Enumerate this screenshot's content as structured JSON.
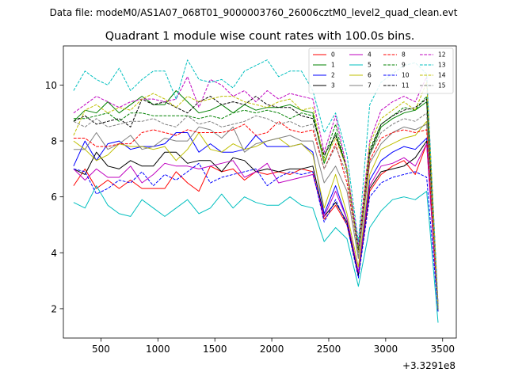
{
  "chart_data": {
    "type": "line",
    "suptitle": "Data file: modeM0/AS1A07_068T01_9000003760_26006cztM0_level2_quad_clean.evt",
    "title": "Quadrant 1 module wise count rates with 100.0s bins.",
    "xlabel": "",
    "ylabel": "",
    "x_offset_label": "+3.3291e8",
    "xlim": [
      170,
      3620
    ],
    "ylim": [
      0.95,
      11.4
    ],
    "xticks": [
      500,
      1000,
      1500,
      2000,
      2500,
      3000,
      3500
    ],
    "yticks": [
      2,
      4,
      6,
      8,
      10
    ],
    "legend_position": "top-right",
    "legend_columns": 4,
    "x": [
      260,
      360,
      460,
      560,
      660,
      760,
      860,
      960,
      1060,
      1160,
      1260,
      1360,
      1460,
      1560,
      1660,
      1760,
      1860,
      1960,
      2060,
      2160,
      2260,
      2360,
      2460,
      2560,
      2660,
      2760,
      2860,
      2960,
      3060,
      3160,
      3260,
      3360,
      3460
    ],
    "series": [
      {
        "name": "0",
        "color": "#ff0000",
        "dash": "solid",
        "values": [
          6.4,
          7.0,
          6.3,
          6.6,
          6.3,
          6.6,
          6.3,
          6.3,
          6.3,
          6.9,
          6.5,
          6.2,
          7.1,
          6.9,
          7.0,
          6.6,
          6.9,
          6.8,
          6.9,
          6.8,
          7.0,
          6.9,
          5.2,
          5.7,
          5.0,
          3.2,
          6.2,
          6.8,
          7.1,
          7.3,
          6.8,
          7.9,
          2.0
        ]
      },
      {
        "name": "1",
        "color": "#008000",
        "dash": "solid",
        "values": [
          8.7,
          9.1,
          9.0,
          9.4,
          9.0,
          9.3,
          9.6,
          9.3,
          9.3,
          9.8,
          9.4,
          9.0,
          9.1,
          9.3,
          9.0,
          9.3,
          9.1,
          9.2,
          9.2,
          9.3,
          9.1,
          9.0,
          7.2,
          8.3,
          7.0,
          4.0,
          7.5,
          8.5,
          8.8,
          9.0,
          9.1,
          9.4,
          2.0
        ]
      },
      {
        "name": "2",
        "color": "#0000ff",
        "dash": "solid",
        "values": [
          7.1,
          8.0,
          7.3,
          7.9,
          8.0,
          7.7,
          7.8,
          7.8,
          7.9,
          8.3,
          8.3,
          7.6,
          7.9,
          7.6,
          7.6,
          7.7,
          8.2,
          7.8,
          7.8,
          7.8,
          7.9,
          7.6,
          5.4,
          6.4,
          5.2,
          3.3,
          6.6,
          7.3,
          7.6,
          7.8,
          7.7,
          8.1,
          1.9
        ]
      },
      {
        "name": "3",
        "color": "#000000",
        "dash": "solid",
        "values": [
          7.0,
          6.8,
          7.6,
          7.1,
          7.0,
          7.3,
          7.1,
          7.1,
          7.6,
          7.6,
          7.2,
          7.3,
          7.3,
          6.9,
          7.4,
          7.3,
          6.9,
          7.0,
          6.9,
          7.0,
          7.0,
          7.1,
          5.3,
          5.8,
          5.1,
          3.2,
          6.3,
          6.9,
          7.0,
          7.1,
          7.4,
          8.0,
          1.9
        ]
      },
      {
        "name": "4",
        "color": "#bf00bf",
        "dash": "solid",
        "values": [
          7.0,
          6.6,
          7.0,
          6.7,
          6.7,
          7.1,
          6.5,
          6.8,
          7.2,
          7.1,
          7.1,
          7.0,
          7.1,
          7.2,
          7.3,
          6.7,
          6.9,
          7.2,
          6.5,
          6.6,
          6.7,
          6.8,
          5.3,
          6.2,
          5.2,
          3.3,
          6.4,
          7.1,
          7.2,
          7.4,
          7.1,
          7.9,
          1.9
        ]
      },
      {
        "name": "5",
        "color": "#00bfbf",
        "dash": "solid",
        "values": [
          5.8,
          5.6,
          6.4,
          5.7,
          5.4,
          5.3,
          5.9,
          5.6,
          5.3,
          5.6,
          5.9,
          5.4,
          5.6,
          6.1,
          5.6,
          6.0,
          5.8,
          5.7,
          5.7,
          6.0,
          5.7,
          5.6,
          4.4,
          4.9,
          4.5,
          2.8,
          4.9,
          5.5,
          5.9,
          6.0,
          5.9,
          6.2,
          1.5
        ]
      },
      {
        "name": "6",
        "color": "#bfbf00",
        "dash": "solid",
        "values": [
          8.0,
          7.7,
          7.3,
          7.5,
          7.9,
          7.8,
          7.8,
          7.7,
          7.8,
          7.3,
          7.7,
          8.3,
          7.7,
          7.6,
          7.9,
          7.7,
          7.8,
          8.0,
          8.1,
          7.8,
          7.9,
          7.5,
          5.6,
          6.8,
          5.4,
          3.5,
          6.8,
          7.7,
          7.9,
          8.1,
          8.2,
          8.7,
          1.9
        ]
      },
      {
        "name": "7",
        "color": "#808080",
        "dash": "solid",
        "values": [
          7.7,
          7.7,
          8.3,
          7.7,
          7.9,
          8.2,
          7.7,
          7.8,
          8.1,
          8.0,
          8.0,
          8.5,
          8.4,
          8.1,
          8.5,
          7.6,
          7.9,
          8.0,
          8.1,
          8.2,
          8.0,
          8.0,
          6.5,
          7.1,
          6.2,
          3.8,
          7.2,
          7.9,
          8.3,
          8.5,
          8.4,
          8.6,
          2.0
        ]
      },
      {
        "name": "8",
        "color": "#ff0000",
        "dash": "dashed",
        "values": [
          8.1,
          8.1,
          7.8,
          7.8,
          7.9,
          7.9,
          8.3,
          8.4,
          8.3,
          8.2,
          8.4,
          8.3,
          8.3,
          8.3,
          8.4,
          8.6,
          8.2,
          8.3,
          8.7,
          8.4,
          8.3,
          8.4,
          7.0,
          7.9,
          6.5,
          4.0,
          7.3,
          8.1,
          8.3,
          8.4,
          8.3,
          8.4,
          2.0
        ]
      },
      {
        "name": "9",
        "color": "#008000",
        "dash": "dashed",
        "values": [
          8.8,
          8.8,
          8.9,
          9.0,
          8.7,
          9.0,
          9.0,
          8.9,
          8.9,
          8.9,
          8.9,
          8.8,
          8.9,
          8.8,
          9.0,
          9.1,
          9.0,
          9.1,
          9.0,
          8.8,
          9.0,
          8.9,
          7.4,
          8.6,
          6.9,
          4.1,
          7.7,
          8.6,
          8.9,
          9.2,
          9.1,
          9.6,
          2.0
        ]
      },
      {
        "name": "10",
        "color": "#0000ff",
        "dash": "dashed",
        "values": [
          7.0,
          6.9,
          6.1,
          6.3,
          6.6,
          6.5,
          6.9,
          6.4,
          6.8,
          6.6,
          6.9,
          7.2,
          6.5,
          6.7,
          6.8,
          6.9,
          7.0,
          6.4,
          6.7,
          6.9,
          6.8,
          6.9,
          5.1,
          5.9,
          5.0,
          3.1,
          6.0,
          6.5,
          6.7,
          6.8,
          6.9,
          6.7,
          1.9
        ]
      },
      {
        "name": "11",
        "color": "#000000",
        "dash": "dashed",
        "values": [
          8.7,
          8.9,
          8.6,
          8.7,
          8.8,
          8.5,
          9.5,
          9.3,
          9.4,
          9.2,
          9.0,
          9.4,
          9.6,
          9.3,
          9.4,
          9.3,
          9.6,
          9.3,
          9.2,
          9.2,
          8.9,
          8.8,
          7.5,
          8.2,
          7.0,
          4.1,
          7.6,
          8.6,
          8.9,
          9.1,
          9.2,
          9.5,
          2.1
        ]
      },
      {
        "name": "12",
        "color": "#bf00bf",
        "dash": "dashed",
        "values": [
          9.0,
          9.3,
          9.6,
          9.4,
          9.2,
          9.4,
          9.5,
          9.5,
          9.4,
          9.5,
          10.3,
          9.2,
          10.2,
          10.0,
          9.6,
          9.8,
          9.4,
          9.8,
          9.5,
          9.7,
          9.6,
          9.5,
          7.6,
          8.9,
          7.0,
          4.3,
          8.0,
          9.1,
          9.4,
          9.6,
          9.4,
          10.3,
          2.2
        ]
      },
      {
        "name": "13",
        "color": "#00bfbf",
        "dash": "dashed",
        "values": [
          9.8,
          10.5,
          10.2,
          10.0,
          10.6,
          9.8,
          10.2,
          10.5,
          10.5,
          9.5,
          10.9,
          10.2,
          10.1,
          10.2,
          9.9,
          10.5,
          10.7,
          10.9,
          10.3,
          10.5,
          10.5,
          9.8,
          8.3,
          9.0,
          7.5,
          4.4,
          9.3,
          10.1,
          10.4,
          10.7,
          10.8,
          10.4,
          2.1
        ]
      },
      {
        "name": "14",
        "color": "#bfbf00",
        "dash": "dashed",
        "values": [
          8.2,
          9.1,
          9.3,
          9.0,
          9.2,
          9.1,
          9.5,
          9.7,
          9.5,
          9.2,
          9.6,
          9.4,
          9.5,
          9.6,
          9.6,
          9.4,
          9.3,
          9.2,
          9.4,
          9.5,
          9.1,
          9.2,
          7.3,
          8.1,
          7.0,
          4.0,
          7.9,
          8.8,
          9.1,
          9.4,
          9.1,
          10.1,
          2.1
        ]
      },
      {
        "name": "15",
        "color": "#808080",
        "dash": "dashed",
        "values": [
          8.7,
          8.5,
          8.8,
          8.5,
          8.6,
          8.7,
          8.7,
          8.8,
          8.6,
          8.5,
          8.9,
          8.6,
          8.7,
          8.5,
          8.6,
          8.7,
          8.9,
          8.8,
          8.6,
          8.7,
          8.5,
          8.6,
          7.0,
          7.8,
          6.8,
          3.9,
          7.5,
          8.3,
          8.6,
          8.8,
          8.7,
          9.0,
          2.0
        ]
      }
    ]
  }
}
